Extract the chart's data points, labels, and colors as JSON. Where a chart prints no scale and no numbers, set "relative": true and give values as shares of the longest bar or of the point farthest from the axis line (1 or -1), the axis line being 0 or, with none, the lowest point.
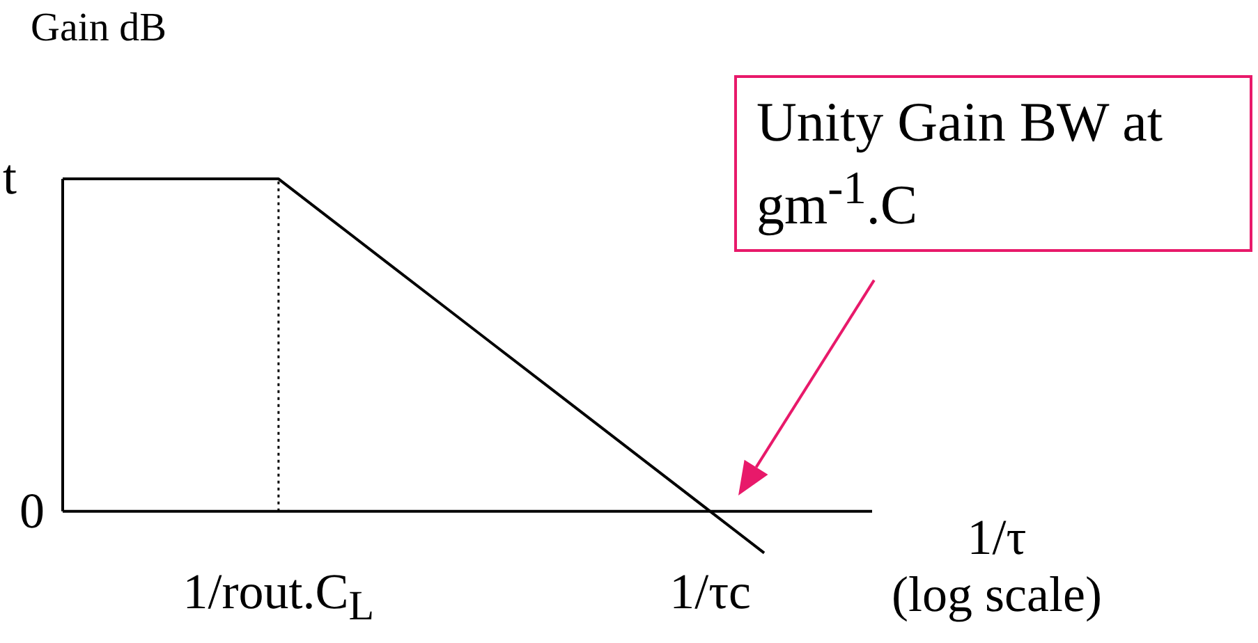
{
  "chart_data": {
    "type": "line",
    "relative": true,
    "ylabel": "Gain dB",
    "xlabel": "1/τ\n(log scale)",
    "categories": [
      null,
      null,
      null,
      null,
      "1/rout.C$_{L}$",
      null,
      null,
      null,
      null,
      null,
      null,
      null,
      "1/τc",
      null,
      null,
      null
    ],
    "series": [
      {
        "color": "#000000",
        "values": [
          1,
          1,
          1,
          1,
          1,
          0.875,
          0.75,
          0.625,
          0.5,
          0.375,
          0.25,
          0.125,
          0,
          -0.125,
          null,
          null
        ]
      }
    ],
    "ref_lines": [
      {
        "axis": "x",
        "value": "1/rout.C$_{L}$",
        "line_style": "dotted",
        "color": "#000000"
      }
    ],
    "annotations": [
      "0",
      "t",
      "Unity Gain BW at gm$^{-1}$.C"
    ],
    "grid": false,
    "legend": false,
    "marker": "none",
    "line_style": "solid"
  }
}
